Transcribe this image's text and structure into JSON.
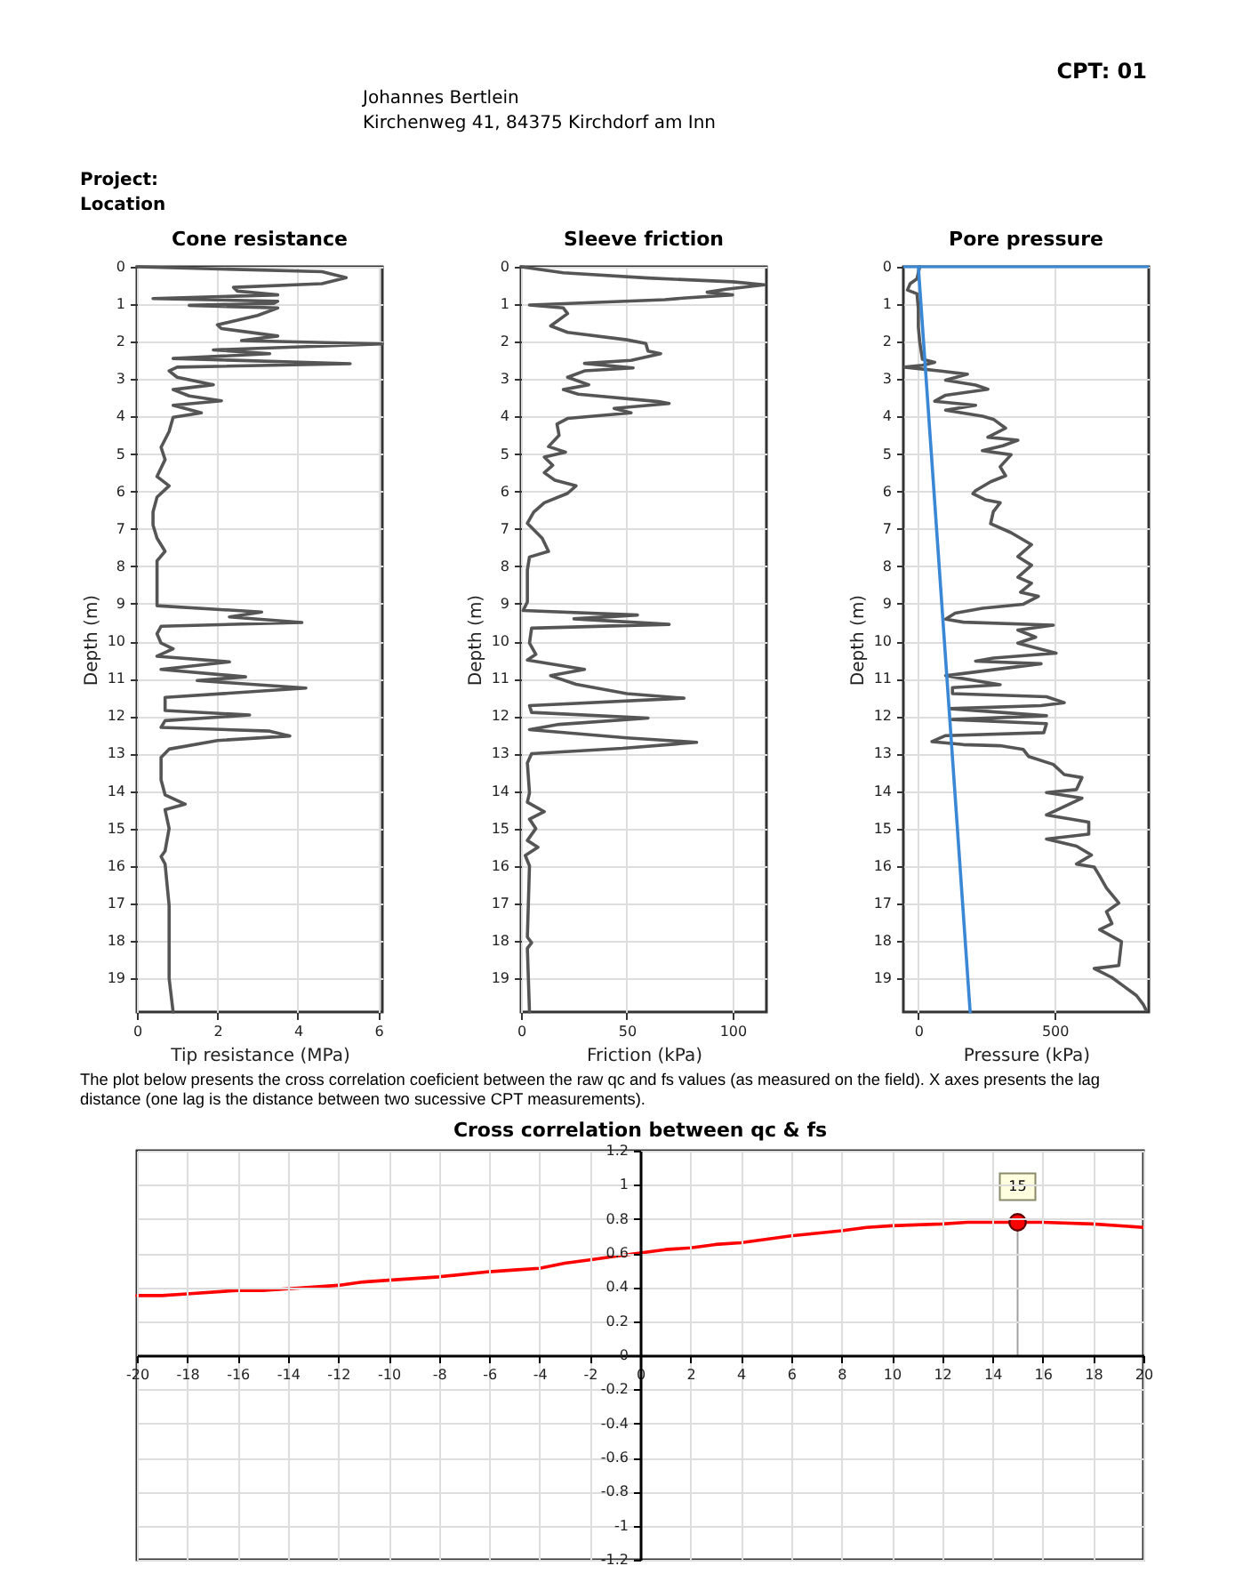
{
  "chart_data": [
    {
      "type": "other",
      "annotations": [
        "CPT: 01",
        "Johannes Bertlein",
        "Kirchenweg 41, 84375 Kirchdorf am Inn",
        "Project:",
        "Location"
      ]
    },
    {
      "type": "line",
      "title": "Cone resistance",
      "xlabel": "Tip resistance (MPa)",
      "ylabel": "Depth (m)",
      "xlim": [
        0,
        6.1
      ],
      "ylim": [
        19.9,
        0
      ],
      "xticks": [
        0,
        2,
        4,
        6
      ],
      "yticks": [
        0,
        1,
        2,
        3,
        4,
        5,
        6,
        7,
        8,
        9,
        10,
        11,
        12,
        13,
        14,
        15,
        16,
        17,
        18,
        19
      ],
      "grid": true,
      "series": [
        {
          "color": "#555555",
          "x": [
            0,
            4.6,
            5.2,
            4.6,
            2.4,
            2.5,
            3.5,
            0.4,
            3.5,
            3.4,
            1.3,
            3.5,
            3,
            2,
            2.1,
            3.5,
            2.6,
            6.1,
            1.9,
            3.3,
            0.9,
            5.3,
            1,
            0.8,
            1,
            1.9,
            0.9,
            1.3,
            2.1,
            0.9,
            1.6,
            0.9,
            0.8,
            0.6,
            0.7,
            0.5,
            0.8,
            0.5,
            0.4,
            0.4,
            0.5,
            0.7,
            0.5,
            0.5,
            3.1,
            2.3,
            4.1,
            0.6,
            0.5,
            0.6,
            0.9,
            0.5,
            2.3,
            0.6,
            2.7,
            1.5,
            4.2,
            0.7,
            0.7,
            2.8,
            0.7,
            0.6,
            3.3,
            3.8,
            2,
            0.8,
            0.6,
            0.6,
            0.7,
            1.2,
            0.7,
            0.8,
            0.7,
            0.6,
            0.7,
            0.8,
            0.8,
            0.8,
            0.8,
            0.9
          ],
          "values": [
            0,
            0.13,
            0.29,
            0.45,
            0.55,
            0.65,
            0.75,
            0.85,
            0.92,
            0.98,
            1.03,
            1.1,
            1.3,
            1.55,
            1.65,
            1.85,
            1.97,
            2.06,
            2.22,
            2.32,
            2.45,
            2.59,
            2.68,
            2.78,
            2.95,
            3.15,
            3.28,
            3.45,
            3.58,
            3.7,
            3.9,
            4.02,
            4.4,
            4.82,
            5.15,
            5.6,
            5.85,
            6.15,
            6.55,
            6.9,
            7.25,
            7.6,
            7.85,
            9.05,
            9.22,
            9.35,
            9.5,
            9.6,
            9.8,
            10.05,
            10.2,
            10.4,
            10.55,
            10.75,
            10.95,
            11.05,
            11.25,
            11.5,
            11.85,
            11.97,
            12.12,
            12.3,
            12.4,
            12.53,
            12.65,
            12.88,
            13.1,
            13.7,
            14.1,
            14.35,
            14.5,
            15,
            15.6,
            15.75,
            15.95,
            17.05,
            17.75,
            18.15,
            19,
            19.9
          ]
        }
      ]
    },
    {
      "type": "line",
      "title": "Sleeve friction",
      "xlabel": "Friction (kPa)",
      "ylabel": "Depth (m)",
      "xlim": [
        0,
        116
      ],
      "ylim": [
        19.9,
        0
      ],
      "xticks": [
        0,
        50,
        100
      ],
      "yticks": [
        0,
        1,
        2,
        3,
        4,
        5,
        6,
        7,
        8,
        9,
        10,
        11,
        12,
        13,
        14,
        15,
        16,
        17,
        18,
        19
      ],
      "grid": true,
      "series": [
        {
          "color": "#555555",
          "x": [
            0,
            20,
            60,
            100,
            115,
            97,
            88,
            100,
            78,
            68,
            4,
            20,
            22,
            14,
            22,
            50,
            59,
            60,
            66,
            52,
            30,
            53,
            30,
            22,
            32,
            20,
            27,
            65,
            70,
            44,
            52,
            22,
            17,
            18,
            13,
            21,
            11,
            15,
            11,
            16,
            26,
            22,
            11,
            6,
            3,
            10,
            13,
            4,
            3,
            3,
            1,
            55,
            25,
            70,
            5,
            4,
            7,
            3,
            30,
            14,
            26,
            50,
            77,
            4,
            5,
            60,
            18,
            4,
            50,
            83,
            48,
            5,
            3,
            4,
            3,
            11,
            4,
            7,
            3,
            8,
            2,
            4,
            3,
            5,
            3,
            4
          ],
          "values": [
            0,
            0.16,
            0.3,
            0.4,
            0.48,
            0.6,
            0.68,
            0.75,
            0.83,
            0.88,
            1.02,
            1.1,
            1.25,
            1.58,
            1.75,
            1.95,
            2.05,
            2.25,
            2.32,
            2.5,
            2.58,
            2.7,
            2.78,
            2.95,
            3.15,
            3.28,
            3.4,
            3.6,
            3.65,
            3.78,
            3.9,
            4.05,
            4.2,
            4.5,
            4.8,
            4.95,
            5.08,
            5.3,
            5.5,
            5.7,
            5.85,
            6.05,
            6.3,
            6.55,
            6.85,
            7.25,
            7.6,
            7.75,
            8.1,
            8.95,
            9.18,
            9.3,
            9.4,
            9.55,
            9.65,
            10.05,
            10.35,
            10.5,
            10.75,
            10.92,
            11.15,
            11.4,
            11.52,
            11.72,
            11.9,
            12.05,
            12.22,
            12.36,
            12.58,
            12.7,
            12.86,
            13,
            13.25,
            14.05,
            14.3,
            14.55,
            14.75,
            15,
            15.32,
            15.5,
            15.72,
            16,
            17.9,
            18.05,
            18.2,
            19.9
          ]
        }
      ]
    },
    {
      "type": "line",
      "title": "Pore pressure",
      "xlabel": "Pressure (kPa)",
      "ylabel": "Depth (m)",
      "xlim": [
        -55,
        845
      ],
      "ylim": [
        19.9,
        0
      ],
      "xticks": [
        0,
        500
      ],
      "yticks": [
        0,
        1,
        2,
        3,
        4,
        5,
        6,
        7,
        8,
        9,
        10,
        11,
        12,
        13,
        14,
        15,
        16,
        17,
        18,
        19
      ],
      "grid": true,
      "ref_lines": [
        {
          "axis": "y",
          "value": 0,
          "color": "#3a87d6"
        }
      ],
      "series": [
        {
          "color": "#555555",
          "x": [
            5,
            -5,
            -30,
            -40,
            -5,
            0,
            0,
            5,
            15,
            60,
            15,
            -50,
            90,
            180,
            100,
            210,
            255,
            100,
            60,
            210,
            100,
            235,
            275,
            320,
            255,
            365,
            310,
            235,
            340,
            300,
            320,
            265,
            210,
            200,
            245,
            300,
            275,
            265,
            340,
            415,
            365,
            415,
            365,
            415,
            375,
            440,
            385,
            235,
            135,
            100,
            165,
            495,
            365,
            430,
            365,
            505,
            275,
            210,
            450,
            100,
            300,
            125,
            125,
            470,
            535,
            450,
            115,
            470,
            125,
            470,
            460,
            100,
            50,
            165,
            300,
            385,
            405,
            495,
            535,
            600,
            580,
            470,
            600,
            470,
            625,
            625,
            470,
            580,
            635,
            580,
            645,
            665,
            690,
            735,
            690,
            710,
            665,
            745,
            735,
            645,
            710,
            755,
            800,
            825,
            835
          ],
          "values": [
            0,
            0.32,
            0.45,
            0.62,
            0.72,
            1.12,
            1.6,
            2,
            2.47,
            2.55,
            2.63,
            2.68,
            2.79,
            2.87,
            3.03,
            3.16,
            3.27,
            3.43,
            3.59,
            3.7,
            3.83,
            3.99,
            4.07,
            4.31,
            4.55,
            4.63,
            4.78,
            4.91,
            5.02,
            5.34,
            5.58,
            5.74,
            5.98,
            6.06,
            6.22,
            6.3,
            6.54,
            6.86,
            7.1,
            7.42,
            7.74,
            7.97,
            8.29,
            8.45,
            8.69,
            8.8,
            9.01,
            9.12,
            9.25,
            9.41,
            9.49,
            9.57,
            9.7,
            9.89,
            10.05,
            10.32,
            10.45,
            10.53,
            10.6,
            10.92,
            11.16,
            11.24,
            11.4,
            11.48,
            11.64,
            11.72,
            11.8,
            11.99,
            12.09,
            12.2,
            12.44,
            12.52,
            12.68,
            12.76,
            12.79,
            12.89,
            13.08,
            13.29,
            13.56,
            13.64,
            13.96,
            14.04,
            14.19,
            14.64,
            14.83,
            15.15,
            15.28,
            15.47,
            15.71,
            15.95,
            16.03,
            16.27,
            16.59,
            16.99,
            17.22,
            17.54,
            17.7,
            18.02,
            18.66,
            18.74,
            18.98,
            19.22,
            19.46,
            19.7,
            19.85
          ]
        },
        {
          "color": "#3a87d6",
          "x": [
            0,
            190
          ],
          "values": [
            0,
            19.9
          ]
        }
      ]
    },
    {
      "type": "line",
      "title": "Cross correlation between qc & fs",
      "xlim": [
        -20,
        20
      ],
      "ylim": [
        -1.2,
        1.2
      ],
      "xticks": [
        -20,
        -18,
        -16,
        -14,
        -12,
        -10,
        -8,
        -6,
        -4,
        -2,
        0,
        2,
        4,
        6,
        8,
        10,
        12,
        14,
        16,
        18,
        20
      ],
      "yticks": [
        -1.2,
        -1,
        -0.8,
        -0.6,
        -0.4,
        -0.2,
        0,
        0.2,
        0.4,
        0.6,
        0.8,
        1,
        1.2
      ],
      "grid": true,
      "annotations": [
        "The plot below presents the cross correlation coeficient between the raw qc and fs values (as measured on the field). X axes presents the lag distance (one lag is the distance between two sucessive CPT measurements).",
        {
          "text": "15",
          "x": 15,
          "y": 0.78
        }
      ],
      "series": [
        {
          "type": "line",
          "color": "#ff0000",
          "x": [
            -20,
            -19,
            -18,
            -16,
            -15,
            -14,
            -12,
            -11,
            -10,
            -8,
            -6,
            -5,
            -4,
            -3,
            -2,
            -1,
            0,
            1,
            2,
            3,
            4,
            6,
            8,
            9,
            10,
            12,
            13,
            14,
            15,
            16,
            18,
            20
          ],
          "values": [
            0.35,
            0.35,
            0.36,
            0.38,
            0.38,
            0.39,
            0.41,
            0.43,
            0.44,
            0.46,
            0.49,
            0.5,
            0.51,
            0.54,
            0.56,
            0.58,
            0.6,
            0.62,
            0.63,
            0.65,
            0.66,
            0.7,
            0.73,
            0.75,
            0.76,
            0.77,
            0.78,
            0.78,
            0.78,
            0.78,
            0.77,
            0.75
          ]
        },
        {
          "type": "lollipop",
          "color": "#ff0000",
          "marker": "circle",
          "x": [
            15
          ],
          "values": [
            0.78
          ]
        }
      ]
    }
  ]
}
